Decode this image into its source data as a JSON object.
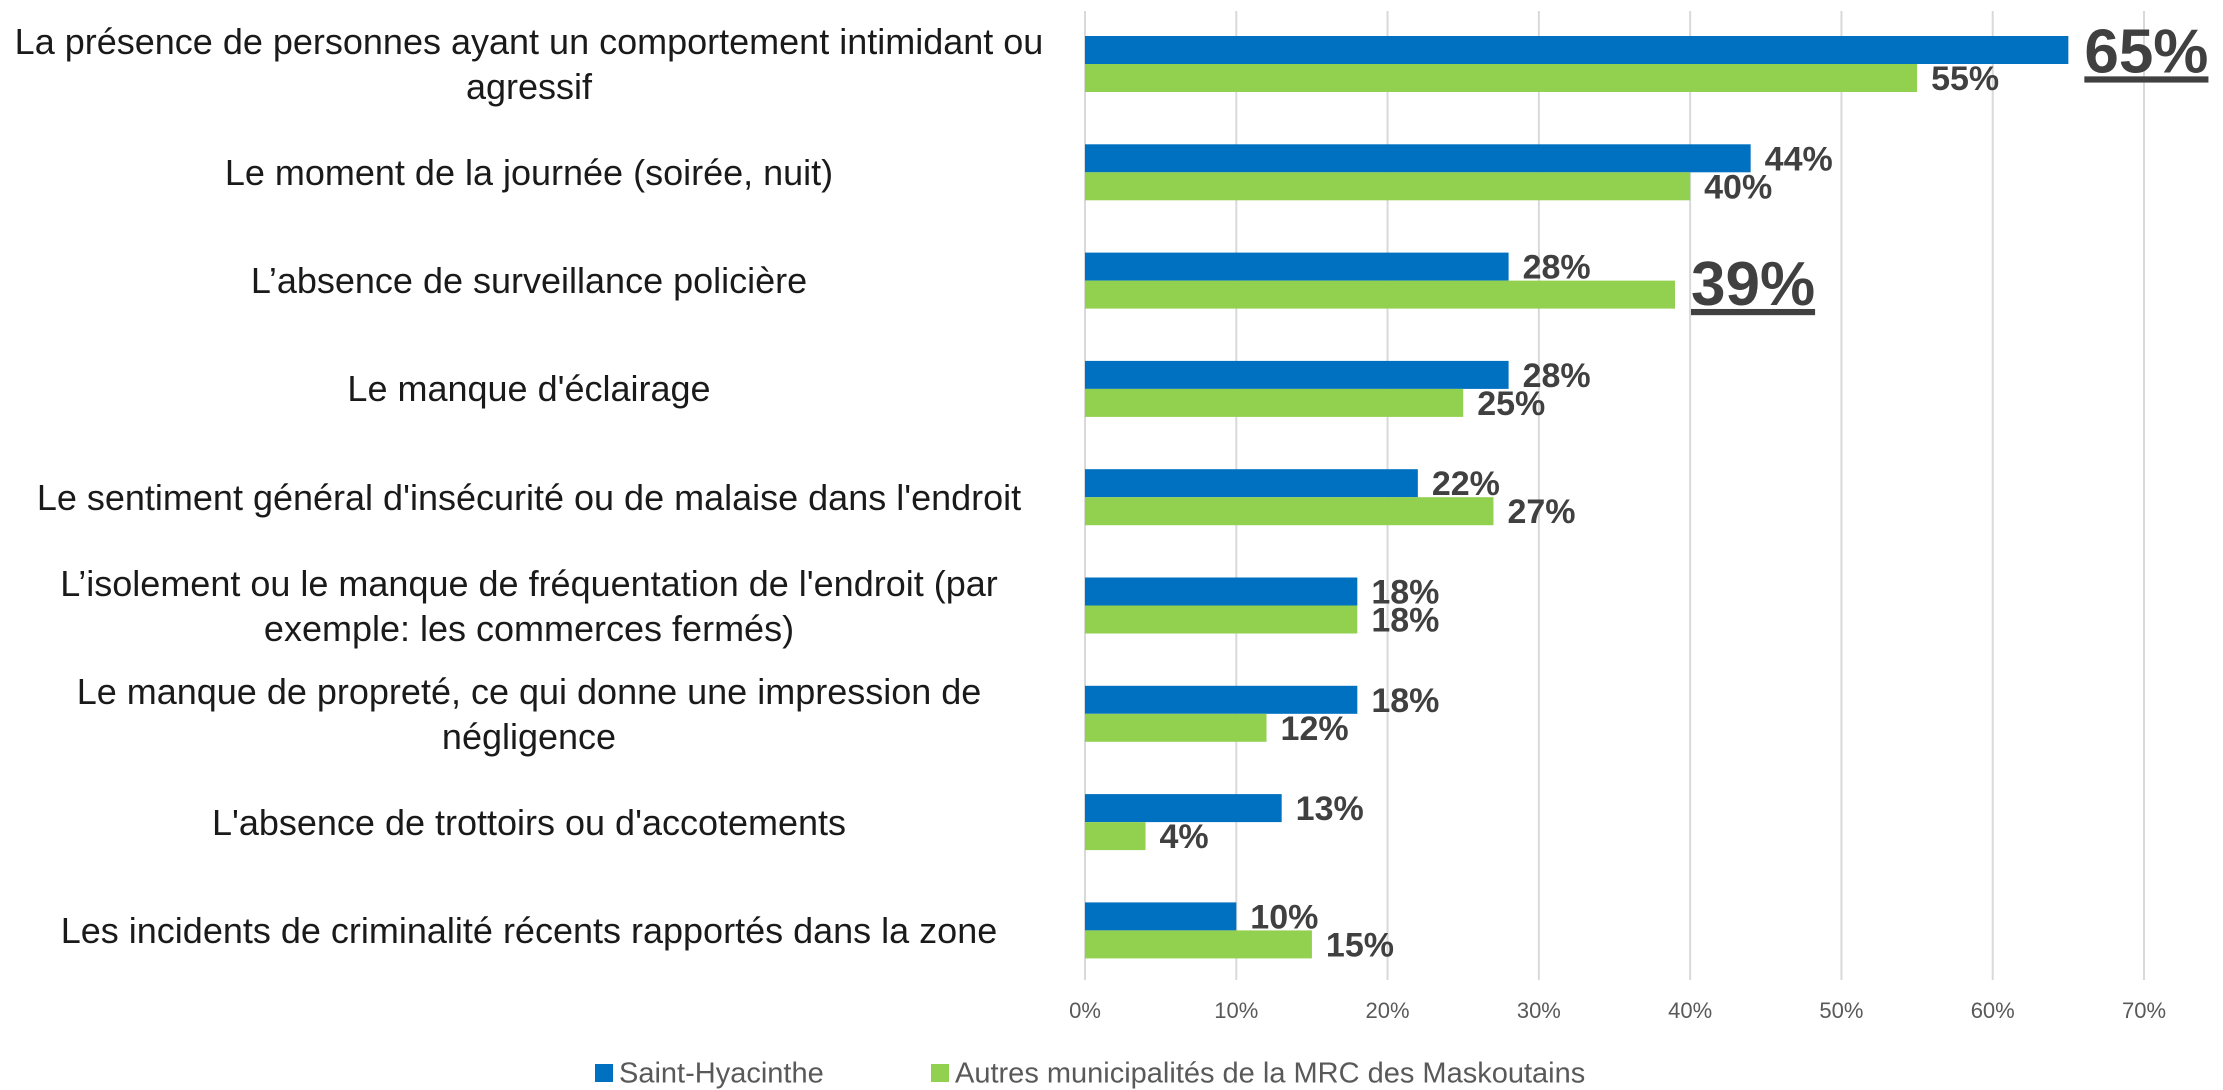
{
  "chart_data": {
    "type": "bar",
    "orientation": "horizontal",
    "categories": [
      "La présence de personnes ayant un comportement intimidant ou agressif",
      "Le moment de la journée (soirée, nuit)",
      "L’absence de surveillance policière",
      "Le manque d'éclairage",
      "Le sentiment général d'insécurité ou de malaise dans l'endroit",
      "L’isolement ou le manque de fréquentation de l'endroit (par exemple: les commerces fermés)",
      "Le manque de propreté, ce qui donne une impression de négligence",
      "L'absence de trottoirs ou d'accotements",
      "Les incidents de criminalité récents rapportés dans la zone"
    ],
    "series": [
      {
        "name": "Saint-Hyacinthe",
        "color": "#0070c0",
        "values": [
          65,
          44,
          28,
          28,
          22,
          18,
          18,
          13,
          10
        ],
        "value_labels": [
          "65%",
          "44%",
          "28%",
          "28%",
          "22%",
          "18%",
          "18%",
          "13%",
          "10%"
        ],
        "highlight": [
          0
        ]
      },
      {
        "name": "Autres municipalités de la MRC des Maskoutains",
        "color": "#92d050",
        "values": [
          55,
          40,
          39,
          25,
          27,
          18,
          12,
          4,
          15
        ],
        "value_labels": [
          "55%",
          "40%",
          "39%",
          "25%",
          "27%",
          "18%",
          "12%",
          "4%",
          "15%"
        ],
        "highlight": [
          2
        ]
      }
    ],
    "xlim": [
      0,
      70
    ],
    "xticks": [
      {
        "value": 0,
        "label": "0%"
      },
      {
        "value": 10,
        "label": "10%"
      },
      {
        "value": 20,
        "label": "20%"
      },
      {
        "value": 30,
        "label": "30%"
      },
      {
        "value": 40,
        "label": "40%"
      },
      {
        "value": 50,
        "label": "50%"
      },
      {
        "value": 60,
        "label": "60%"
      },
      {
        "value": 70,
        "label": "70%"
      }
    ],
    "grid": true,
    "legend": "bottom"
  }
}
